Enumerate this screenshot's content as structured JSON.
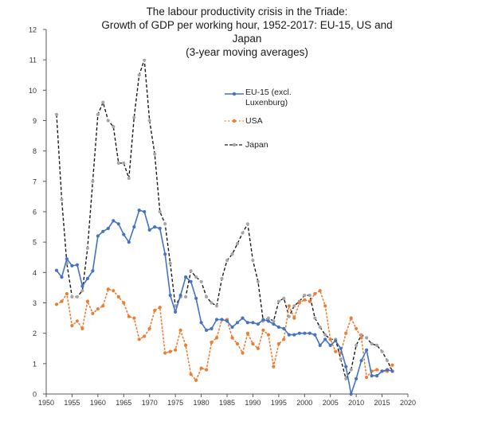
{
  "chart_data": {
    "type": "line",
    "title_lines": [
      "The labour productivity crisis in the Triade:",
      "Growth of GDP per working hour, 1952-2017: EU-15, US and",
      "Japan",
      "(3-year moving averages)"
    ],
    "xlim": [
      1950,
      2020
    ],
    "ylim": [
      0,
      12
    ],
    "x_ticks": [
      "1950",
      "1955",
      "1960",
      "1965",
      "1970",
      "1975",
      "1980",
      "1985",
      "1990",
      "1995",
      "2000",
      "2005",
      "2010",
      "2015",
      "2020"
    ],
    "y_ticks": [
      "0",
      "1",
      "2",
      "3",
      "4",
      "5",
      "6",
      "7",
      "8",
      "9",
      "10",
      "11",
      "12"
    ],
    "grid": false,
    "legend_position": "center",
    "x": [
      1952,
      1953,
      1954,
      1955,
      1956,
      1957,
      1958,
      1959,
      1960,
      1961,
      1962,
      1963,
      1964,
      1965,
      1966,
      1967,
      1968,
      1969,
      1970,
      1971,
      1972,
      1973,
      1974,
      1975,
      1976,
      1977,
      1978,
      1979,
      1980,
      1981,
      1982,
      1983,
      1984,
      1985,
      1986,
      1987,
      1988,
      1989,
      1990,
      1991,
      1992,
      1993,
      1994,
      1995,
      1996,
      1997,
      1998,
      1999,
      2000,
      2001,
      2002,
      2003,
      2004,
      2005,
      2006,
      2007,
      2008,
      2009,
      2010,
      2011,
      2012,
      2013,
      2014,
      2015,
      2016,
      2017
    ],
    "series": [
      {
        "name": "EU-15 (excl. Luxenburg)",
        "color": "#4472c4",
        "style": "solid-marker",
        "values": [
          4.07,
          3.85,
          4.45,
          4.22,
          4.25,
          3.55,
          3.8,
          4.05,
          5.2,
          5.35,
          5.45,
          5.7,
          5.6,
          5.25,
          5.0,
          5.5,
          6.05,
          6.0,
          5.4,
          5.5,
          5.45,
          4.6,
          3.25,
          2.7,
          3.25,
          3.85,
          3.7,
          3.15,
          2.35,
          2.1,
          2.15,
          2.45,
          2.45,
          2.4,
          2.2,
          2.35,
          2.5,
          2.35,
          2.35,
          2.3,
          2.45,
          2.4,
          2.3,
          2.2,
          2.15,
          1.95,
          1.95,
          2.0,
          2.0,
          2.0,
          1.95,
          1.6,
          1.8,
          1.6,
          1.75,
          1.5,
          0.9,
          0.0,
          0.5,
          1.1,
          1.45,
          0.6,
          0.6,
          0.75,
          0.8,
          0.75
        ]
      },
      {
        "name": "USA",
        "color": "#ed7d31",
        "style": "dotted-marker",
        "values": [
          2.95,
          3.05,
          3.3,
          2.25,
          2.4,
          2.15,
          3.05,
          2.65,
          2.8,
          2.9,
          3.45,
          3.4,
          3.2,
          3.0,
          2.55,
          2.5,
          1.8,
          1.9,
          2.15,
          2.75,
          2.85,
          1.35,
          1.4,
          1.45,
          2.1,
          1.6,
          0.65,
          0.45,
          0.85,
          0.8,
          1.7,
          1.85,
          2.45,
          2.45,
          1.85,
          1.65,
          1.35,
          2.0,
          1.65,
          1.5,
          2.1,
          1.95,
          0.9,
          1.65,
          1.8,
          2.9,
          2.5,
          3.0,
          3.1,
          3.05,
          3.3,
          3.4,
          2.9,
          1.8,
          1.4,
          1.35,
          2.0,
          2.5,
          2.15,
          1.85,
          0.55,
          0.75,
          0.8,
          0.75,
          0.75,
          0.95
        ]
      },
      {
        "name": "Japan",
        "color": "#1a1a1a",
        "style": "dashed",
        "values": [
          9.2,
          6.4,
          4.3,
          3.2,
          3.2,
          3.4,
          4.8,
          7.0,
          9.2,
          9.6,
          9.0,
          8.8,
          7.6,
          7.6,
          7.1,
          9.1,
          10.5,
          11.0,
          9.0,
          7.9,
          6.0,
          5.6,
          4.3,
          2.9,
          3.2,
          3.2,
          4.05,
          3.85,
          3.7,
          3.2,
          3.0,
          2.9,
          3.8,
          4.4,
          4.6,
          4.95,
          5.3,
          5.6,
          4.4,
          3.7,
          2.4,
          2.5,
          2.4,
          3.05,
          3.15,
          2.55,
          2.9,
          3.05,
          3.25,
          3.25,
          2.5,
          2.2,
          1.95,
          1.8,
          1.8,
          1.15,
          0.5,
          0.8,
          1.6,
          1.95,
          1.85,
          1.65,
          1.6,
          1.4,
          1.1,
          0.75
        ]
      }
    ]
  }
}
